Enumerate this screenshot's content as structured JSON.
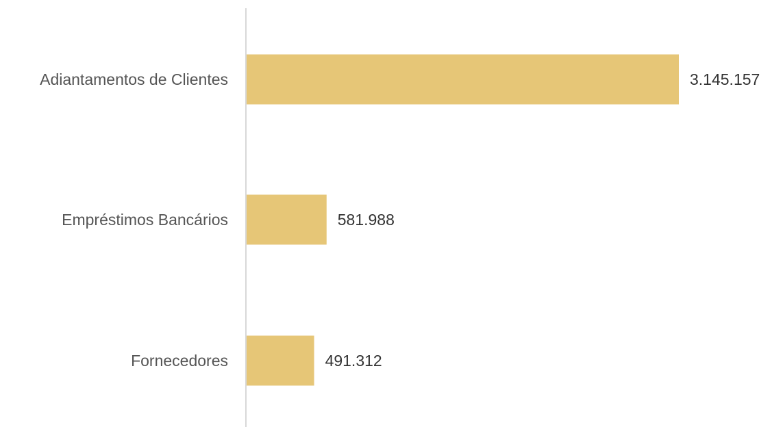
{
  "chart_data": {
    "type": "bar",
    "orientation": "horizontal",
    "categories": [
      "Adiantamentos de Clientes",
      "Empréstimos Bancários",
      "Fornecedores"
    ],
    "values": [
      3145157,
      581988,
      491312
    ],
    "value_labels": [
      "3.145.157",
      "581.988",
      "491.312"
    ],
    "title": "",
    "xlabel": "",
    "ylabel": "",
    "xlim": [
      0,
      3145157
    ],
    "grid": false,
    "legend": "none",
    "colors": {
      "bar": "#E6C677",
      "axis": "#cccccc",
      "category_text": "#555555",
      "value_text": "#333333"
    }
  }
}
